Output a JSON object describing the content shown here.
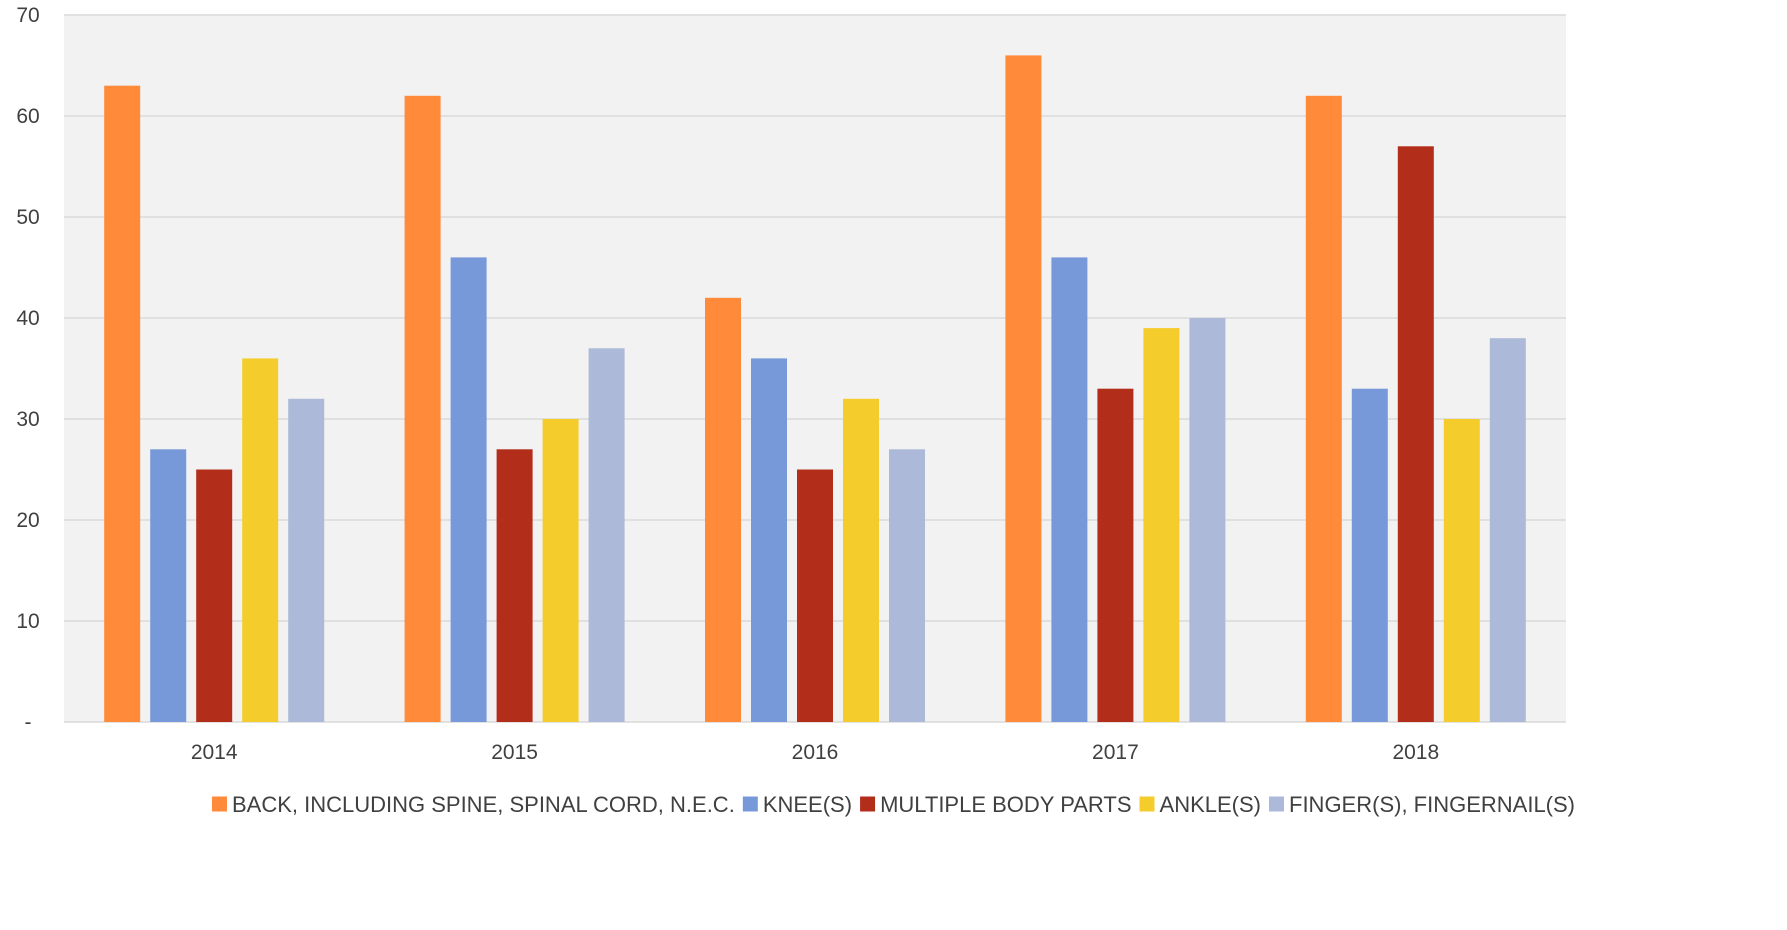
{
  "chart_data": {
    "type": "bar",
    "title": "",
    "xlabel": "",
    "ylabel": "",
    "categories": [
      "2014",
      "2015",
      "2016",
      "2017",
      "2018"
    ],
    "series": [
      {
        "name": "BACK, INCLUDING SPINE, SPINAL CORD, N.E.C.",
        "color": "#FF8A3A",
        "values": [
          63,
          62,
          42,
          66,
          62
        ]
      },
      {
        "name": "KNEE(S)",
        "color": "#7799D9",
        "values": [
          27,
          46,
          36,
          46,
          33
        ]
      },
      {
        "name": "MULTIPLE BODY PARTS",
        "color": "#B22D1A",
        "values": [
          25,
          27,
          25,
          33,
          57
        ]
      },
      {
        "name": "ANKLE(S)",
        "color": "#F4CD2D",
        "values": [
          36,
          30,
          32,
          39,
          30
        ]
      },
      {
        "name": "FINGER(S), FINGERNAIL(S)",
        "color": "#ADB9D8",
        "values": [
          32,
          37,
          27,
          40,
          38
        ]
      }
    ],
    "ylim": [
      0,
      70
    ],
    "yticks": [
      0,
      10,
      20,
      30,
      40,
      50,
      60,
      70
    ],
    "ytick_labels": [
      "-",
      "10",
      "20",
      "30",
      "40",
      "50",
      "60",
      "70"
    ],
    "grid": true,
    "legend_position": "bottom",
    "plot_background": "#F2F2F2",
    "gridline_color": "#D9D9D9"
  }
}
